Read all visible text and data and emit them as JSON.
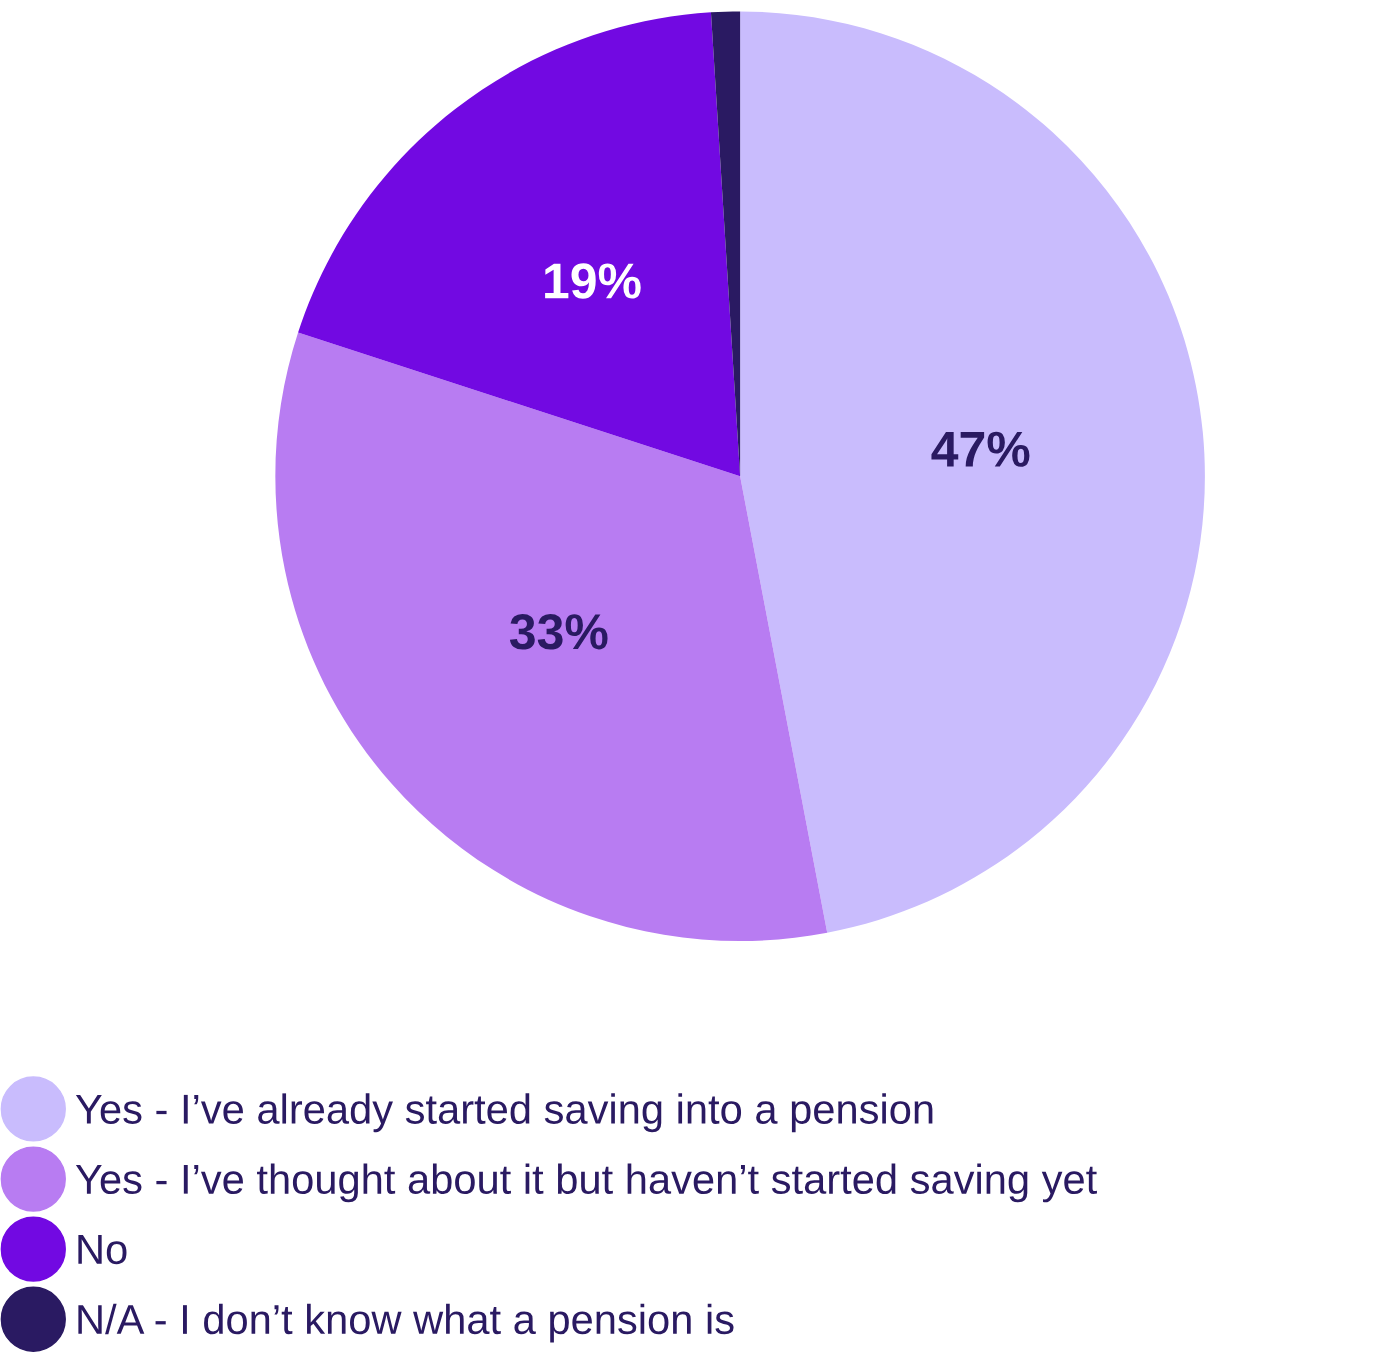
{
  "chart_data": {
    "type": "pie",
    "categories": [
      "Yes - I’ve already started saving into a pension",
      "Yes - I’ve thought about it but haven’t started saving yet",
      "No",
      "N/A - I don’t know what a pension is"
    ],
    "values": [
      47,
      33,
      19,
      1
    ],
    "colors": [
      "#c9bcfd",
      "#b87cf2",
      "#7209e2",
      "#2a1a62"
    ],
    "value_labels": [
      "47%",
      "33%",
      "19%",
      null
    ],
    "legend": "bottom"
  }
}
